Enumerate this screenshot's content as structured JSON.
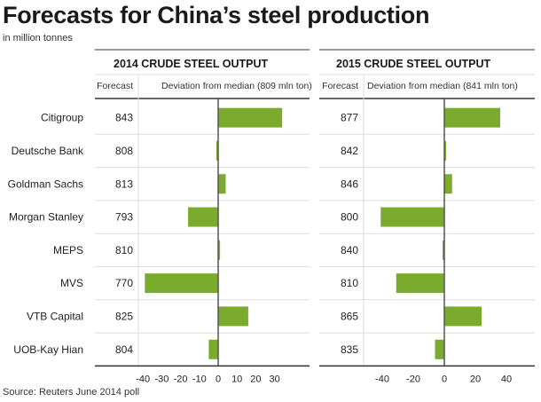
{
  "title": "Forecasts for China’s steel production",
  "subtitle": "in million tonnes",
  "source": "Source: Reuters June 2014 poll",
  "colors": {
    "bar": "#7aab2c",
    "axis": "#555555",
    "grid": "#dddddd"
  },
  "chart_data": [
    {
      "type": "bar",
      "orientation": "horizontal",
      "title": "2014 CRUDE STEEL OUTPUT",
      "forecast_header": "Forecast",
      "deviation_header": "Deviation from median (809 mln ton)",
      "median": 809,
      "categories": [
        "Citigroup",
        "Deutsche Bank",
        "Goldman Sachs",
        "Morgan Stanley",
        "MEPS",
        "MVS",
        "VTB Capital",
        "UOB-Kay Hian"
      ],
      "forecasts": [
        843,
        808,
        813,
        793,
        810,
        770,
        825,
        804
      ],
      "values": [
        34,
        -1,
        4,
        -16,
        1,
        -39,
        16,
        -5
      ],
      "xlim": [
        -42,
        36
      ],
      "xticks": [
        -40,
        -30,
        -20,
        -10,
        0,
        10,
        20,
        30
      ],
      "grid": false
    },
    {
      "type": "bar",
      "orientation": "horizontal",
      "title": "2015 CRUDE STEEL OUTPUT",
      "forecast_header": "Forecast",
      "deviation_header": "Deviation from median (841 mln ton)",
      "median": 841,
      "categories": [
        "Citigroup",
        "Deutsche Bank",
        "Goldman Sachs",
        "Morgan Stanley",
        "MEPS",
        "MVS",
        "VTB Capital",
        "UOB-Kay Hian"
      ],
      "forecasts": [
        877,
        842,
        846,
        800,
        840,
        810,
        865,
        835
      ],
      "values": [
        36,
        1,
        5,
        -41,
        -1,
        -31,
        24,
        -6
      ],
      "xlim": [
        -45,
        50
      ],
      "xticks": [
        -40,
        -20,
        0,
        20,
        40
      ],
      "grid": false
    }
  ]
}
